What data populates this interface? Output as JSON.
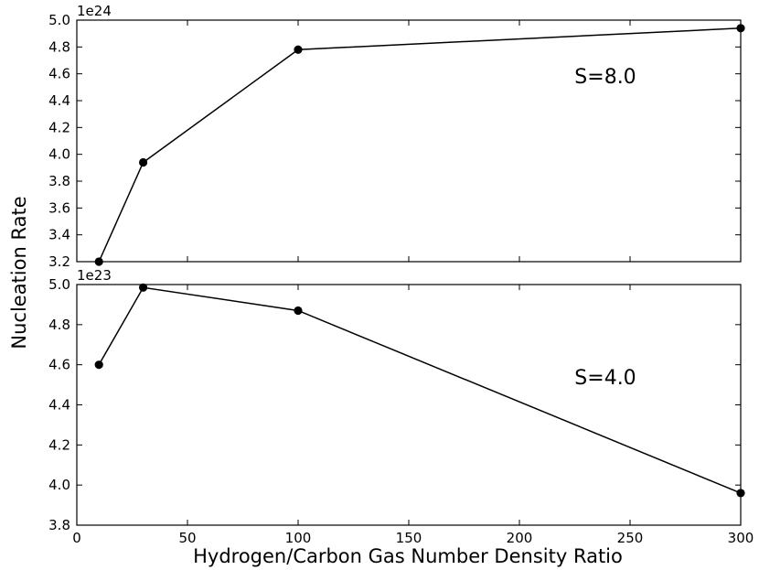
{
  "figure": {
    "xlabel": "Hydrogen/Carbon Gas Number Density Ratio",
    "ylabel": "Nucleation Rate"
  },
  "chart_data": [
    {
      "type": "line",
      "x": [
        10,
        30,
        100,
        300
      ],
      "y": [
        3.2,
        3.94,
        4.78,
        4.94
      ],
      "y_multiplier": "1e24",
      "annotation": "S=8.0",
      "xlim": [
        0,
        300
      ],
      "ylim": [
        3.2,
        5.0
      ],
      "yticks": [
        "3.2",
        "3.4",
        "3.6",
        "3.8",
        "4.0",
        "4.2",
        "4.4",
        "4.6",
        "4.8",
        "5.0"
      ],
      "xticks": [],
      "line_color": "#000000",
      "marker": "circle",
      "grid": false
    },
    {
      "type": "line",
      "x": [
        10,
        30,
        100,
        300
      ],
      "y": [
        4.6,
        4.985,
        4.87,
        3.96
      ],
      "y_multiplier": "1e23",
      "annotation": "S=4.0",
      "xlim": [
        0,
        300
      ],
      "ylim": [
        3.8,
        5.0
      ],
      "yticks": [
        "3.8",
        "4.0",
        "4.2",
        "4.4",
        "4.6",
        "4.8",
        "5.0"
      ],
      "xticks": [
        "0",
        "50",
        "100",
        "150",
        "200",
        "250",
        "300"
      ],
      "line_color": "#000000",
      "marker": "circle",
      "grid": false
    }
  ]
}
